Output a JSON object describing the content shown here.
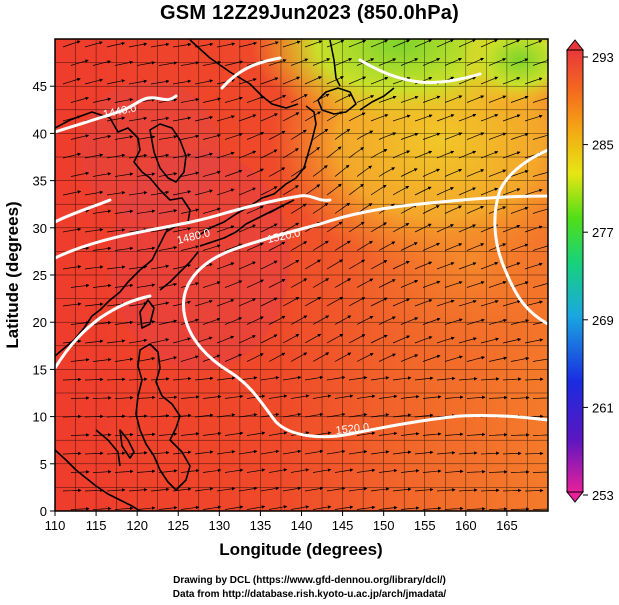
{
  "title": "GSM 12Z29Jun2023 (850.0hPa)",
  "axes": {
    "xlabel": "Longitude (degrees)",
    "ylabel": "Latitude  (degrees)",
    "xlim": [
      110,
      170
    ],
    "ylim": [
      0,
      50
    ],
    "xticks": [
      110,
      115,
      120,
      125,
      130,
      135,
      140,
      145,
      150,
      155,
      160,
      165
    ],
    "yticks": [
      0,
      5,
      10,
      15,
      20,
      25,
      30,
      35,
      40,
      45
    ],
    "grid": true
  },
  "colorbar": {
    "labels": [
      "293",
      "285",
      "277",
      "269",
      "261",
      "253"
    ],
    "min": 253,
    "max": 293,
    "colors": [
      "#e8209a",
      "#5a16c2",
      "#1a2ce0",
      "#1aa8e0",
      "#18d27a",
      "#52de18",
      "#e6e614",
      "#f4a714",
      "#f46820",
      "#e8383a"
    ]
  },
  "map_colors": {
    "sea_warm": "#f0402a",
    "sea_hot": "#e83a30",
    "warm_orange": "#f6862a",
    "yellow": "#f3c825",
    "green": "#9fdc2c",
    "coast": "#000000",
    "contour": "#ffffff"
  },
  "contours": [
    {
      "label": "1440.0"
    },
    {
      "label": "1480.0"
    },
    {
      "label": "1520.0"
    },
    {
      "label": "1520.0"
    }
  ],
  "credits": {
    "line1": "Drawing by DCL (https://www.gfd-dennou.org/library/dcl/)",
    "line2": "Data from http://database.rish.kyoto-u.ac.jp/arch/jmadata/"
  }
}
